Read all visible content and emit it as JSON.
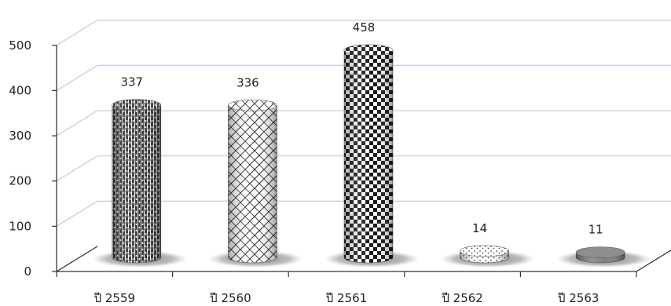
{
  "chart_data": {
    "type": "bar",
    "style": "3d-cylinder",
    "categories": [
      "ปี 2559",
      "ปี 2560",
      "ปี 2561",
      "ปี 2562",
      "ปี 2563"
    ],
    "values": [
      337,
      336,
      458,
      14,
      11
    ],
    "data_labels": [
      "337",
      "336",
      "458",
      "14",
      "11"
    ],
    "ylim": [
      0,
      500
    ],
    "yticks": [
      "0",
      "100",
      "200",
      "300",
      "400",
      "500"
    ],
    "grid": true,
    "legend": "none",
    "colors": {
      "grid": "#b8cce4",
      "axis": "#333333",
      "shadow": "#a9a9a9"
    },
    "patterns": [
      "dense-weave",
      "lattice",
      "checkerboard",
      "dots",
      "solid-gray"
    ]
  }
}
